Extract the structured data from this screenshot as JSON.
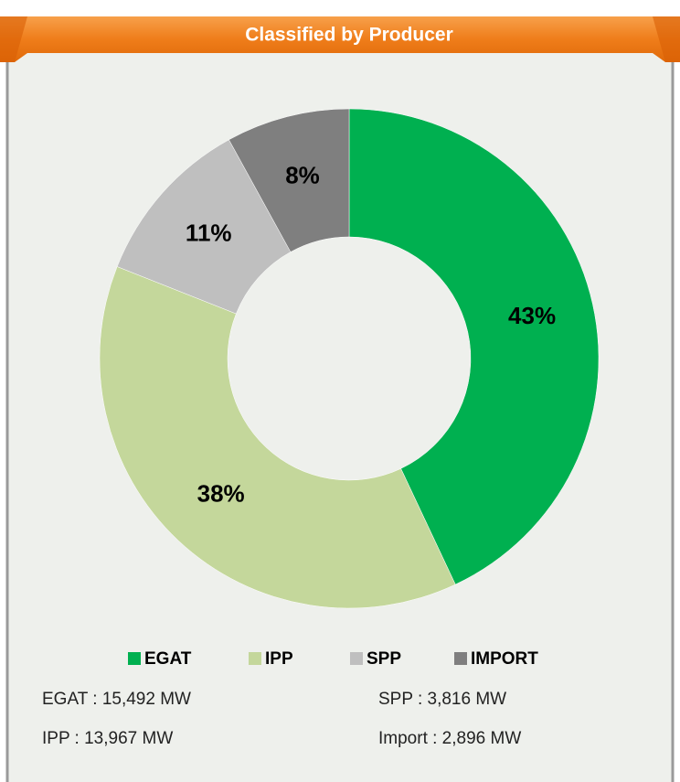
{
  "chart_data": {
    "type": "pie",
    "title": "Classified by Producer",
    "categories": [
      "EGAT",
      "IPP",
      "SPP",
      "IMPORT"
    ],
    "values": [
      43,
      38,
      11,
      8
    ],
    "value_labels": [
      "43%",
      "38%",
      "11%",
      "8%"
    ],
    "colors": [
      "#00b050",
      "#c4d79b",
      "#bfbfbf",
      "#7f7f7f"
    ],
    "legend": "bottom",
    "notes": [
      "EGAT : 15,492 MW",
      "IPP : 13,967 MW",
      "SPP : 3,816 MW",
      "Import : 2,896 MW"
    ]
  }
}
